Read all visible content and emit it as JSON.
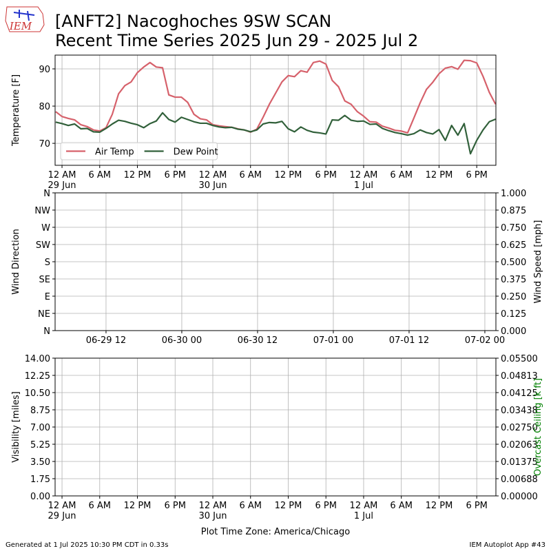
{
  "logo": "IEM",
  "title": [
    "[ANFT2] Nacoghoches 9SW SCAN",
    "Recent Time Series 2025 Jun 29 - 2025 Jul 2"
  ],
  "footer": {
    "left": "Generated at 1 Jul 2025 10:30 PM CDT in 0.33s",
    "right": "IEM Autoplot App #43"
  },
  "chart_data": [
    {
      "type": "line",
      "ylabel": "Temperature [F]",
      "grid": true,
      "legend": "lower left",
      "xlim": [
        "2025-06-28 22:54",
        "2025-07-01 21:03"
      ],
      "ylim": [
        64.1,
        93.7
      ],
      "yticks": [
        70,
        80,
        90
      ],
      "xticks": [
        {
          "value": "2025-06-29 00:00",
          "label": "12 AM\n29 Jun"
        },
        {
          "value": "2025-06-29 06:00",
          "label": "6 AM"
        },
        {
          "value": "2025-06-29 12:00",
          "label": "12 PM"
        },
        {
          "value": "2025-06-29 18:00",
          "label": "6 PM"
        },
        {
          "value": "2025-06-30 00:00",
          "label": "12 AM\n30 Jun"
        },
        {
          "value": "2025-06-30 06:00",
          "label": "6 AM"
        },
        {
          "value": "2025-06-30 12:00",
          "label": "12 PM"
        },
        {
          "value": "2025-06-30 18:00",
          "label": "6 PM"
        },
        {
          "value": "2025-07-01 00:00",
          "label": "12 AM\n1 Jul"
        },
        {
          "value": "2025-07-01 06:00",
          "label": "6 AM"
        },
        {
          "value": "2025-07-01 12:00",
          "label": "12 PM"
        },
        {
          "value": "2025-07-01 18:00",
          "label": "6 PM"
        }
      ],
      "x": [
        "2025-06-28 23:00",
        "2025-06-29 00:00",
        "2025-06-29 01:00",
        "2025-06-29 02:00",
        "2025-06-29 03:00",
        "2025-06-29 04:00",
        "2025-06-29 05:00",
        "2025-06-29 06:00",
        "2025-06-29 07:00",
        "2025-06-29 08:00",
        "2025-06-29 09:00",
        "2025-06-29 10:00",
        "2025-06-29 11:00",
        "2025-06-29 12:00",
        "2025-06-29 13:00",
        "2025-06-29 14:00",
        "2025-06-29 15:00",
        "2025-06-29 16:00",
        "2025-06-29 17:00",
        "2025-06-29 18:00",
        "2025-06-29 19:00",
        "2025-06-29 20:00",
        "2025-06-29 21:00",
        "2025-06-29 22:00",
        "2025-06-29 23:00",
        "2025-06-30 00:00",
        "2025-06-30 01:00",
        "2025-06-30 02:00",
        "2025-06-30 03:00",
        "2025-06-30 04:00",
        "2025-06-30 05:00",
        "2025-06-30 06:00",
        "2025-06-30 07:00",
        "2025-06-30 08:00",
        "2025-06-30 09:00",
        "2025-06-30 10:00",
        "2025-06-30 11:00",
        "2025-06-30 12:00",
        "2025-06-30 13:00",
        "2025-06-30 14:00",
        "2025-06-30 15:00",
        "2025-06-30 16:00",
        "2025-06-30 17:00",
        "2025-06-30 18:00",
        "2025-06-30 19:00",
        "2025-06-30 20:00",
        "2025-06-30 21:00",
        "2025-06-30 22:00",
        "2025-06-30 23:00",
        "2025-07-01 00:00",
        "2025-07-01 01:00",
        "2025-07-01 02:00",
        "2025-07-01 03:00",
        "2025-07-01 04:00",
        "2025-07-01 05:00",
        "2025-07-01 06:00",
        "2025-07-01 07:00",
        "2025-07-01 08:00",
        "2025-07-01 09:00",
        "2025-07-01 10:00",
        "2025-07-01 11:00",
        "2025-07-01 12:00",
        "2025-07-01 13:00",
        "2025-07-01 14:00",
        "2025-07-01 15:00",
        "2025-07-01 16:00",
        "2025-07-01 17:00",
        "2025-07-01 18:00",
        "2025-07-01 19:00",
        "2025-07-01 20:00",
        "2025-07-01 21:00"
      ],
      "series": [
        {
          "name": "Air Temp",
          "color": "#d6616b",
          "values": [
            78.5,
            77.2,
            76.7,
            76.3,
            75.0,
            74.5,
            73.6,
            73.3,
            74.2,
            77.8,
            83.3,
            85.5,
            86.5,
            89.0,
            90.5,
            91.7,
            90.5,
            90.3,
            83.0,
            82.4,
            82.4,
            81.0,
            77.8,
            76.6,
            76.3,
            75.0,
            74.7,
            74.5,
            74.3,
            73.9,
            73.6,
            73.0,
            73.8,
            77.0,
            80.5,
            83.5,
            86.5,
            88.2,
            87.9,
            89.5,
            89.1,
            91.7,
            92.1,
            91.3,
            86.9,
            85.2,
            81.4,
            80.5,
            78.5,
            77.3,
            75.8,
            75.7,
            74.6,
            74.1,
            73.5,
            73.3,
            72.8,
            76.8,
            80.9,
            84.5,
            86.4,
            88.7,
            90.2,
            90.6,
            89.9,
            92.3,
            92.2,
            91.6,
            88.0,
            83.7,
            80.5
          ]
        },
        {
          "name": "Dew Point",
          "color": "#31603a",
          "values": [
            75.7,
            75.3,
            74.8,
            75.2,
            73.9,
            74.0,
            73.1,
            73.0,
            74.0,
            75.2,
            76.2,
            75.9,
            75.4,
            75.0,
            74.2,
            75.3,
            76.0,
            78.2,
            76.4,
            75.7,
            77.0,
            76.4,
            75.8,
            75.4,
            75.4,
            74.8,
            74.4,
            74.2,
            74.3,
            73.8,
            73.6,
            73.1,
            73.6,
            75.2,
            75.6,
            75.5,
            75.9,
            73.9,
            73.1,
            74.4,
            73.5,
            73.0,
            72.8,
            72.5,
            76.3,
            76.2,
            77.5,
            76.2,
            75.9,
            76.0,
            75.1,
            75.2,
            74.0,
            73.4,
            72.9,
            72.6,
            72.2,
            72.6,
            73.6,
            72.9,
            72.5,
            73.7,
            70.8,
            74.8,
            72.2,
            75.3,
            67.2,
            70.8,
            73.6,
            75.8,
            76.5
          ]
        }
      ]
    },
    {
      "type": "line",
      "ylabel": "Wind Direction",
      "y2label": "Wind Speed [mph]",
      "grid": true,
      "xlim": [
        "2025-06-29 03:56",
        "2025-07-02 01:45"
      ],
      "xticks": [
        {
          "value": "2025-06-29 12:00",
          "label": "06-29 12"
        },
        {
          "value": "2025-06-30 00:00",
          "label": "06-30 00"
        },
        {
          "value": "2025-06-30 12:00",
          "label": "06-30 12"
        },
        {
          "value": "2025-07-01 00:00",
          "label": "07-01 00"
        },
        {
          "value": "2025-07-01 12:00",
          "label": "07-01 12"
        },
        {
          "value": "2025-07-02 00:00",
          "label": "07-02 00"
        }
      ],
      "ylim": [
        0,
        360
      ],
      "yticks": [
        {
          "value": 0,
          "label": "N"
        },
        {
          "value": 45,
          "label": "NE"
        },
        {
          "value": 90,
          "label": "E"
        },
        {
          "value": 135,
          "label": "SE"
        },
        {
          "value": 180,
          "label": "S"
        },
        {
          "value": 225,
          "label": "SW"
        },
        {
          "value": 270,
          "label": "W"
        },
        {
          "value": 315,
          "label": "NW"
        },
        {
          "value": 360,
          "label": "N"
        }
      ],
      "y2lim": [
        0,
        1
      ],
      "y2ticks": [
        {
          "value": 0,
          "label": "0.000"
        },
        {
          "value": 0.125,
          "label": "0.125"
        },
        {
          "value": 0.25,
          "label": "0.250"
        },
        {
          "value": 0.375,
          "label": "0.375"
        },
        {
          "value": 0.5,
          "label": "0.500"
        },
        {
          "value": 0.625,
          "label": "0.625"
        },
        {
          "value": 0.75,
          "label": "0.750"
        },
        {
          "value": 0.875,
          "label": "0.875"
        },
        {
          "value": 1,
          "label": "1.000"
        }
      ],
      "series": []
    },
    {
      "type": "line",
      "ylabel": "Visibility [miles]",
      "y2label": "Overcast Ceiling [k ft]",
      "y2label_color": "green",
      "grid": true,
      "xlabel": "Plot Time Zone: America/Chicago",
      "xlim": [
        "2025-06-28 22:54",
        "2025-07-01 21:03"
      ],
      "xticks": [
        {
          "value": "2025-06-29 00:00",
          "label": "12 AM\n29 Jun"
        },
        {
          "value": "2025-06-29 06:00",
          "label": "6 AM"
        },
        {
          "value": "2025-06-29 12:00",
          "label": "12 PM"
        },
        {
          "value": "2025-06-29 18:00",
          "label": "6 PM"
        },
        {
          "value": "2025-06-30 00:00",
          "label": "12 AM\n30 Jun"
        },
        {
          "value": "2025-06-30 06:00",
          "label": "6 AM"
        },
        {
          "value": "2025-06-30 12:00",
          "label": "12 PM"
        },
        {
          "value": "2025-06-30 18:00",
          "label": "6 PM"
        },
        {
          "value": "2025-07-01 00:00",
          "label": "12 AM\n1 Jul"
        },
        {
          "value": "2025-07-01 06:00",
          "label": "6 AM"
        },
        {
          "value": "2025-07-01 12:00",
          "label": "12 PM"
        },
        {
          "value": "2025-07-01 18:00",
          "label": "6 PM"
        }
      ],
      "ylim": [
        0,
        14
      ],
      "yticks": [
        {
          "value": 0,
          "label": "0.00"
        },
        {
          "value": 1.75,
          "label": "1.75"
        },
        {
          "value": 3.5,
          "label": "3.50"
        },
        {
          "value": 5.25,
          "label": "5.25"
        },
        {
          "value": 7,
          "label": "7.00"
        },
        {
          "value": 8.75,
          "label": "8.75"
        },
        {
          "value": 10.5,
          "label": "10.50"
        },
        {
          "value": 12.25,
          "label": "12.25"
        },
        {
          "value": 14,
          "label": "14.00"
        }
      ],
      "y2lim": [
        0,
        0.055
      ],
      "y2ticks": [
        {
          "value": 0,
          "label": "0.00000"
        },
        {
          "value": 0.006875,
          "label": "0.00688"
        },
        {
          "value": 0.01375,
          "label": "0.01375"
        },
        {
          "value": 0.020625,
          "label": "0.02063"
        },
        {
          "value": 0.0275,
          "label": "0.02750"
        },
        {
          "value": 0.034375,
          "label": "0.03438"
        },
        {
          "value": 0.04125,
          "label": "0.04125"
        },
        {
          "value": 0.048125,
          "label": "0.04813"
        },
        {
          "value": 0.055,
          "label": "0.05500"
        }
      ],
      "series": []
    }
  ]
}
